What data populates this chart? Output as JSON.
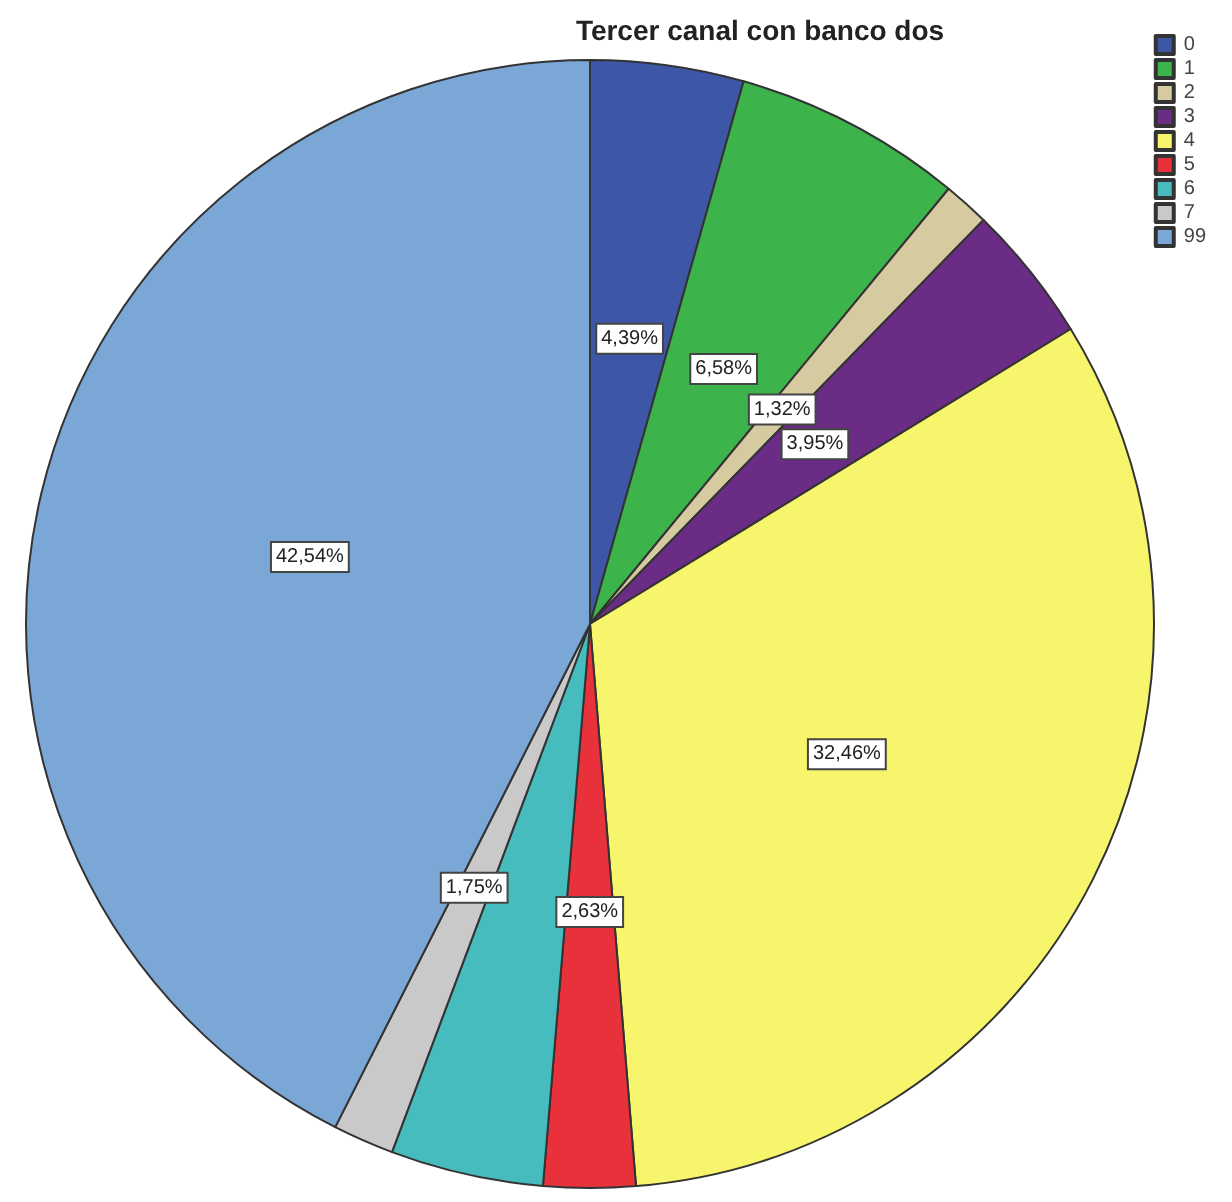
{
  "chart_data": {
    "type": "pie",
    "title": "Tercer canal con banco dos",
    "categories": [
      "0",
      "1",
      "2",
      "3",
      "4",
      "5",
      "6",
      "7",
      "99"
    ],
    "values": [
      4.39,
      6.58,
      1.32,
      3.95,
      32.46,
      2.63,
      4.38,
      1.75,
      42.54
    ],
    "value_labels": [
      "4,39%",
      "6,58%",
      "1,32%",
      "3,95%",
      "32,46%",
      "2,63%",
      null,
      "1,75%",
      "42,54%"
    ],
    "colors": [
      "#3d56a5",
      "#3cb44b",
      "#d6caa0",
      "#6b2c86",
      "#f7f56c",
      "#e8313b",
      "#47bcbe",
      "#c9c9c9",
      "#7ba7d7"
    ],
    "legend": "top right"
  }
}
